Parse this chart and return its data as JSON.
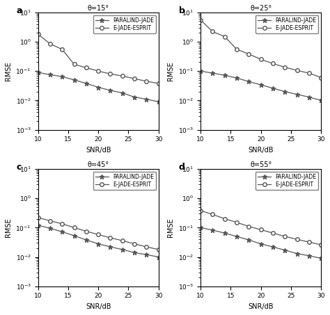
{
  "snr": [
    10,
    12,
    14,
    16,
    18,
    20,
    22,
    24,
    26,
    28,
    30
  ],
  "subplots": [
    {
      "label": "a",
      "title": "θ=15°",
      "paralind": [
        0.09,
        0.075,
        0.065,
        0.05,
        0.038,
        0.028,
        0.022,
        0.018,
        0.013,
        0.011,
        0.009
      ],
      "ejprit": [
        1.8,
        0.85,
        0.55,
        0.17,
        0.13,
        0.1,
        0.08,
        0.068,
        0.055,
        0.045,
        0.038
      ],
      "ylim": [
        0.001,
        10.0
      ],
      "yticks": [
        0.001,
        0.01,
        0.1,
        1.0,
        10.0
      ]
    },
    {
      "label": "b",
      "title": "θ=25°",
      "paralind": [
        0.1,
        0.085,
        0.072,
        0.058,
        0.044,
        0.034,
        0.026,
        0.02,
        0.016,
        0.013,
        0.01
      ],
      "ejprit": [
        5.5,
        2.2,
        1.5,
        0.55,
        0.38,
        0.25,
        0.18,
        0.135,
        0.105,
        0.085,
        0.06
      ],
      "ylim": [
        0.001,
        10.0
      ],
      "yticks": [
        0.001,
        0.01,
        0.1,
        1.0,
        10.0
      ]
    },
    {
      "label": "c",
      "title": "θ=45°",
      "paralind": [
        0.12,
        0.095,
        0.072,
        0.053,
        0.038,
        0.028,
        0.022,
        0.018,
        0.014,
        0.012,
        0.01
      ],
      "ejprit": [
        0.22,
        0.17,
        0.135,
        0.1,
        0.075,
        0.058,
        0.045,
        0.036,
        0.028,
        0.022,
        0.018
      ],
      "ylim": [
        0.001,
        10.0
      ],
      "yticks": [
        0.001,
        0.01,
        0.1,
        1.0,
        10.0
      ]
    },
    {
      "label": "d",
      "title": "θ=55°",
      "paralind": [
        0.1,
        0.082,
        0.065,
        0.05,
        0.038,
        0.028,
        0.022,
        0.017,
        0.013,
        0.011,
        0.009
      ],
      "ejprit": [
        0.38,
        0.28,
        0.2,
        0.15,
        0.11,
        0.085,
        0.065,
        0.05,
        0.04,
        0.032,
        0.026
      ],
      "ylim": [
        0.001,
        10.0
      ],
      "yticks": [
        0.001,
        0.01,
        0.1,
        1.0,
        10.0
      ]
    }
  ],
  "line_color": "#555555",
  "bg_color": "#ffffff",
  "xlabel": "SNR/dB",
  "ylabel": "RMSE",
  "legend_paralind": "PARALIND-JADE",
  "legend_ejprit": "E-JADE-ESPRIT",
  "xticks": [
    10,
    15,
    20,
    25,
    30
  ]
}
